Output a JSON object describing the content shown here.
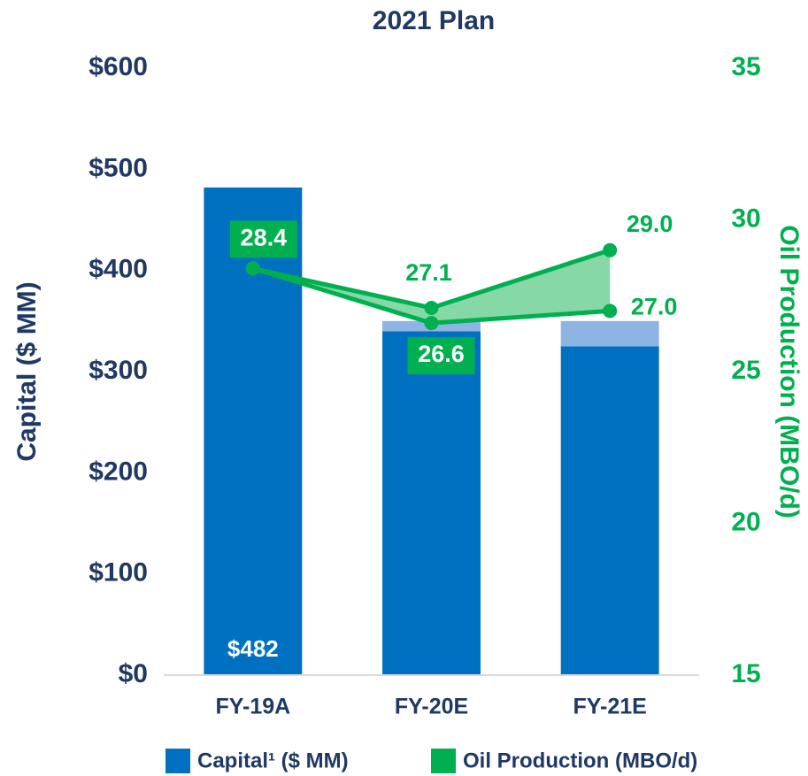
{
  "chart_data": {
    "type": "bar",
    "title": "2021 Plan",
    "categories": [
      "FY-19A",
      "FY-20E",
      "FY-21E"
    ],
    "series": [
      {
        "name": "Capital¹ ($ MM)",
        "type": "bar",
        "color": "#0070c0",
        "values": [
          482,
          340,
          325
        ],
        "value_labels": [
          "$482",
          null,
          null
        ]
      },
      {
        "type": "bar",
        "color": "#8db4e2",
        "values": [
          0,
          10,
          25
        ]
      },
      {
        "name": "Oil Production (MBO/d)",
        "type": "line",
        "axis": "y2",
        "color": "#00b050",
        "values": [
          28.4,
          27.1,
          29.0
        ],
        "value_labels": [
          "28.4",
          "27.1",
          "29.0"
        ]
      },
      {
        "type": "line",
        "axis": "y2",
        "color": "#00b050",
        "values": [
          28.4,
          26.6,
          27.0
        ],
        "value_labels": [
          null,
          "26.6",
          "27.0"
        ]
      }
    ],
    "fill_between": true,
    "ylabel": "Capital ($ MM)",
    "y2label": "Oil Production (MBO/d)",
    "ylim": [
      0,
      600
    ],
    "yticks": [
      {
        "value": 0,
        "label": "$0"
      },
      {
        "value": 100,
        "label": "$100"
      },
      {
        "value": 200,
        "label": "$200"
      },
      {
        "value": 300,
        "label": "$300"
      },
      {
        "value": 400,
        "label": "$400"
      },
      {
        "value": 500,
        "label": "$500"
      },
      {
        "value": 600,
        "label": "$600"
      }
    ],
    "y2lim": [
      15,
      35
    ],
    "y2ticks": [
      15,
      20,
      25,
      30,
      35
    ]
  }
}
